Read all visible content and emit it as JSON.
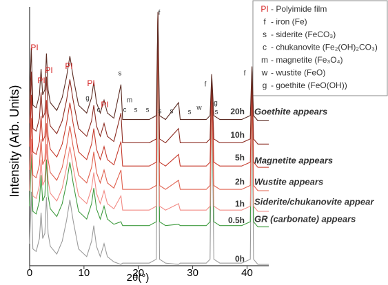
{
  "chart_data": {
    "type": "line",
    "xlabel": "2θ(°)",
    "ylabel": "Intensity (Arb. Units)",
    "xlim": [
      0,
      44
    ],
    "ylim": [
      0,
      100
    ],
    "xticks": [
      0,
      10,
      20,
      30,
      40
    ],
    "x": [
      0,
      0.3,
      0.6,
      1.2,
      1.8,
      2.1,
      2.4,
      2.8,
      3.1,
      3.4,
      3.8,
      5,
      6,
      6.8,
      7.4,
      8,
      9,
      10.5,
      11.4,
      11.8,
      12.3,
      13,
      13.7,
      14.3,
      15.5,
      16.8,
      17.1,
      18,
      19,
      20,
      22,
      23.3,
      23.6,
      23.9,
      25,
      27.4,
      27.7,
      30,
      32.5,
      33.2,
      33.5,
      33.9,
      35,
      39,
      40.6,
      40.9,
      41.2,
      42,
      44
    ],
    "series": [
      {
        "name": "0h",
        "color": "#9a9a9a",
        "values": [
          8.5,
          28.5,
          6.5,
          5.5,
          10.5,
          20.5,
          10.5,
          12.5,
          26.5,
          12.5,
          7.5,
          4.5,
          9.5,
          17.5,
          25.5,
          17.5,
          6.5,
          3.5,
          9.5,
          15.5,
          7.5,
          3.5,
          8.5,
          3.5,
          1.5,
          0.5,
          1,
          1,
          1,
          1,
          1,
          2.5,
          98,
          2.5,
          1,
          0.5,
          1,
          1,
          1,
          2.5,
          70,
          2.5,
          1,
          1,
          2.5,
          73,
          2.5,
          0.5,
          0.5
        ]
      },
      {
        "name": "0.5h",
        "color": "#3f9b3f",
        "values": [
          23,
          43,
          21,
          20,
          25,
          35,
          25,
          27,
          41,
          27,
          22,
          19,
          24,
          32,
          40,
          32,
          21,
          18,
          24,
          30,
          22,
          18,
          23,
          18,
          16,
          17,
          15.5,
          15.5,
          15.5,
          15.5,
          15.5,
          17,
          98,
          17,
          15.5,
          16,
          15.5,
          15.5,
          15.5,
          17,
          70,
          17,
          15.5,
          15.5,
          17,
          73,
          17,
          15,
          15
        ]
      },
      {
        "name": "1h",
        "color": "#f28a84",
        "values": [
          29,
          49,
          27,
          26,
          31,
          41,
          31,
          33,
          47,
          33,
          28,
          25,
          30,
          38,
          46,
          38,
          27,
          24,
          30,
          36,
          28,
          24,
          29,
          24,
          22,
          27,
          21.5,
          21.5,
          21.5,
          21.5,
          21.5,
          23,
          98,
          23,
          21.5,
          24,
          21.5,
          21.5,
          21.5,
          23,
          70,
          23,
          21.5,
          21.5,
          23,
          73,
          23,
          21,
          21
        ]
      },
      {
        "name": "2h",
        "color": "#e0604e",
        "values": [
          37,
          57,
          35,
          34,
          39,
          49,
          39,
          41,
          55,
          41,
          36,
          33,
          38,
          46,
          54,
          46,
          35,
          32,
          38,
          44,
          36,
          32,
          37,
          32,
          30,
          37,
          29.5,
          29.5,
          29.5,
          29.5,
          29.5,
          31,
          98,
          31,
          29.5,
          33,
          29.5,
          29.5,
          29.5,
          31,
          70,
          31,
          29.5,
          29.5,
          31,
          73,
          31,
          29,
          29
        ]
      },
      {
        "name": "5h",
        "color": "#c63a2c",
        "values": [
          46,
          66,
          44,
          43,
          48,
          58,
          48,
          50,
          64,
          50,
          45,
          42,
          47,
          55,
          63,
          55,
          44,
          41,
          47,
          53,
          45,
          41,
          46,
          41,
          39,
          48,
          38.5,
          38.5,
          38.5,
          38.5,
          38.5,
          40,
          98,
          40,
          38.5,
          43,
          38.5,
          38.5,
          38.5,
          40,
          70,
          40,
          38.5,
          38.5,
          40,
          73,
          40,
          38,
          38
        ]
      },
      {
        "name": "10h",
        "color": "#8c2c22",
        "values": [
          55,
          75,
          53,
          52,
          57,
          67,
          57,
          59,
          73,
          59,
          54,
          51,
          56,
          64,
          72,
          64,
          53,
          50,
          56,
          62,
          54,
          50,
          55,
          50,
          48,
          59,
          47.5,
          47.5,
          47.5,
          47.5,
          47.5,
          49,
          98,
          49,
          47.5,
          53,
          47.5,
          47.5,
          47.5,
          49,
          72,
          49,
          47.5,
          47.5,
          49,
          75,
          49,
          47,
          47
        ]
      },
      {
        "name": "20h",
        "color": "#5b2b22",
        "values": [
          64,
          84,
          62,
          61,
          66,
          76,
          66,
          68,
          82,
          68,
          63,
          60,
          65,
          73,
          81,
          73,
          62,
          59,
          65,
          71,
          63,
          59,
          64,
          59,
          57,
          70,
          56.5,
          56.5,
          56.5,
          56.5,
          56.5,
          58,
          98,
          58,
          56.5,
          63,
          56.5,
          56.5,
          56.5,
          58,
          74,
          58,
          56.5,
          56.5,
          58,
          77,
          58,
          56,
          56
        ]
      }
    ],
    "annotations": [
      "Goethite appears",
      "Magnetite appears",
      "Wustite appears",
      "Siderite/chukanovite appear",
      "GR (carbonate) appears"
    ],
    "peak_labels": [
      "PI",
      "PI",
      "PI",
      "PI",
      "PI",
      "PI",
      "g",
      "c",
      "f",
      "s",
      "m",
      "c",
      "s",
      "s",
      "s",
      "s",
      "s",
      "w",
      "g",
      "s",
      "f",
      "f"
    ],
    "legend": [
      {
        "key": "PI",
        "text": "- Polyimide film"
      },
      {
        "key": "f",
        "text": "- iron (Fe)"
      },
      {
        "key": "s",
        "text": "- siderite (FeCO₃)"
      },
      {
        "key": "c",
        "text": "- chukanovite (Fe₂(OH)₂CO₃)"
      },
      {
        "key": "m",
        "text": "- magnetite (Fe₃O₄)"
      },
      {
        "key": "w",
        "text": "- wustite (FeO)"
      },
      {
        "key": "g",
        "text": "- goethite (FeO(OH))"
      }
    ]
  }
}
